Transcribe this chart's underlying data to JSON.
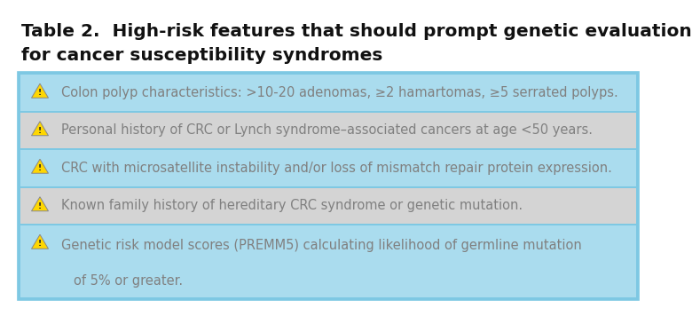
{
  "title_line1": "Table 2.  High-risk features that should prompt genetic evaluation",
  "title_line2": "for cancer susceptibility syndromes",
  "rows": [
    {
      "text": "Colon polyp characteristics: >10-20 adenomas, ≥2 hamartomas, ≥5 serrated polyps.",
      "bg": "#aadcee",
      "multiline": false,
      "text2": null
    },
    {
      "text": "Personal history of CRC or Lynch syndrome–associated cancers at age <50 years.",
      "bg": "#d4d4d4",
      "multiline": false,
      "text2": null
    },
    {
      "text": "CRC with microsatellite instability and/or loss of mismatch repair protein expression.",
      "bg": "#aadcee",
      "multiline": false,
      "text2": null
    },
    {
      "text": "Known family history of hereditary CRC syndrome or genetic mutation.",
      "bg": "#d4d4d4",
      "multiline": false,
      "text2": null
    },
    {
      "text": "Genetic risk model scores (PREMM5) calculating likelihood of germline mutation",
      "bg": "#aadcee",
      "multiline": true,
      "text2": "    of 5% or greater."
    }
  ],
  "text_color": "#808080",
  "title_color": "#111111",
  "bg_color": "#ffffff",
  "table_border_color": "#7ec8e3",
  "separator_color": "#7ec8e3",
  "icon_fill": "#FFD700",
  "icon_edge": "#aaaaaa",
  "font_size_title": 14.5,
  "font_size_row": 10.5
}
